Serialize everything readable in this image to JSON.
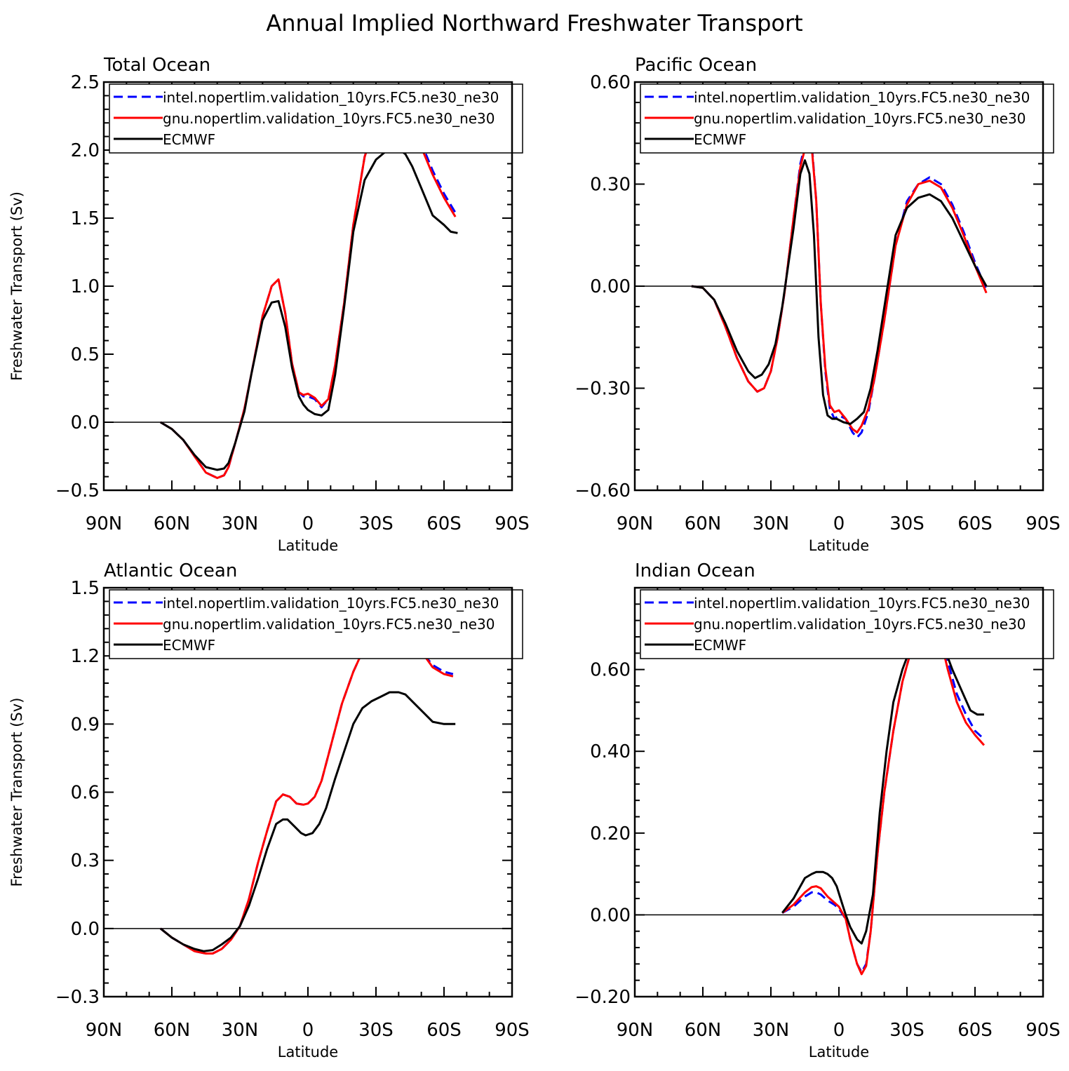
{
  "title": "Annual Implied Northward Freshwater Transport",
  "colors": {
    "intel": "#0000ff",
    "gnu": "#ff0000",
    "ecmwf": "#000000"
  },
  "chart_data": [
    {
      "type": "line",
      "title": "Total Ocean",
      "xlabel": "Latitude",
      "ylabel": "Freshwater Transport (Sv)",
      "x_axis": "latitude, 90N on left to 90S on right",
      "xlim": [
        90,
        -90
      ],
      "xticks": [
        90,
        60,
        30,
        0,
        -30,
        -60,
        -90
      ],
      "xtick_labels": [
        "90N",
        "60N",
        "30N",
        "0",
        "30S",
        "60S",
        "90S"
      ],
      "ylim": [
        -0.5,
        2.5
      ],
      "yticks": [
        -0.5,
        0.0,
        0.5,
        1.0,
        1.5,
        2.0,
        2.5
      ],
      "ytick_labels": [
        "−0.5",
        "0.0",
        "0.5",
        "1.0",
        "1.5",
        "2.0",
        "2.5"
      ],
      "legend_position": "top",
      "series": [
        {
          "name": "intel.nopertlim.validation_10yrs.FC5.ne30_ne30",
          "style": "dashed",
          "color": "#0000ff",
          "x": [
            65,
            60,
            55,
            50,
            45,
            40,
            37,
            35,
            32,
            28,
            25,
            20,
            16,
            13,
            10,
            7,
            4,
            2,
            0,
            -3,
            -6,
            -9,
            -12,
            -16,
            -20,
            -25,
            -30,
            -35,
            -40,
            -43,
            -46,
            -50,
            -55,
            -60,
            -65
          ],
          "y": [
            0.0,
            -0.05,
            -0.13,
            -0.25,
            -0.37,
            -0.41,
            -0.39,
            -0.33,
            -0.15,
            0.1,
            0.35,
            0.78,
            1.0,
            1.05,
            0.8,
            0.43,
            0.22,
            0.19,
            0.19,
            0.17,
            0.11,
            0.17,
            0.42,
            0.88,
            1.45,
            1.95,
            2.22,
            2.35,
            2.38,
            2.35,
            2.25,
            2.05,
            1.85,
            1.68,
            1.54
          ]
        },
        {
          "name": "gnu.nopertlim.validation_10yrs.FC5.ne30_ne30",
          "style": "solid",
          "color": "#ff0000",
          "x": [
            65,
            60,
            55,
            50,
            45,
            40,
            37,
            35,
            32,
            28,
            25,
            20,
            16,
            13,
            10,
            7,
            4,
            2,
            0,
            -3,
            -6,
            -9,
            -12,
            -16,
            -20,
            -25,
            -30,
            -35,
            -40,
            -43,
            -46,
            -50,
            -55,
            -60,
            -65
          ],
          "y": [
            0.0,
            -0.05,
            -0.13,
            -0.25,
            -0.37,
            -0.41,
            -0.39,
            -0.33,
            -0.15,
            0.1,
            0.35,
            0.78,
            1.0,
            1.05,
            0.8,
            0.43,
            0.22,
            0.2,
            0.21,
            0.18,
            0.12,
            0.17,
            0.42,
            0.88,
            1.45,
            1.95,
            2.2,
            2.33,
            2.36,
            2.33,
            2.22,
            2.02,
            1.82,
            1.65,
            1.51
          ]
        },
        {
          "name": "ECMWF",
          "style": "solid",
          "color": "#000000",
          "x": [
            65,
            60,
            55,
            50,
            45,
            40,
            37,
            35,
            32,
            28,
            25,
            20,
            16,
            13,
            10,
            7,
            4,
            2,
            0,
            -3,
            -6,
            -9,
            -12,
            -16,
            -20,
            -25,
            -30,
            -35,
            -40,
            -43,
            -46,
            -50,
            -55,
            -60,
            -63,
            -66
          ],
          "y": [
            0.0,
            -0.05,
            -0.13,
            -0.24,
            -0.33,
            -0.35,
            -0.34,
            -0.3,
            -0.15,
            0.08,
            0.35,
            0.75,
            0.88,
            0.89,
            0.7,
            0.4,
            0.19,
            0.13,
            0.09,
            0.06,
            0.05,
            0.09,
            0.35,
            0.85,
            1.4,
            1.78,
            1.93,
            2.0,
            2.01,
            1.97,
            1.88,
            1.72,
            1.52,
            1.45,
            1.4,
            1.39
          ]
        }
      ]
    },
    {
      "type": "line",
      "title": "Pacific Ocean",
      "xlabel": "Latitude",
      "ylabel": "",
      "xlim": [
        90,
        -90
      ],
      "xticks": [
        90,
        60,
        30,
        0,
        -30,
        -60,
        -90
      ],
      "xtick_labels": [
        "90N",
        "60N",
        "30N",
        "0",
        "30S",
        "60S",
        "90S"
      ],
      "ylim": [
        -0.6,
        0.6
      ],
      "yticks": [
        -0.6,
        -0.3,
        0.0,
        0.3,
        0.6
      ],
      "ytick_labels": [
        "−0.60",
        "−0.30",
        "0.00",
        "0.30",
        "0.60"
      ],
      "legend_position": "top",
      "series": [
        {
          "name": "intel.nopertlim.validation_10yrs.FC5.ne30_ne30",
          "style": "dashed",
          "color": "#0000ff",
          "x": [
            65,
            60,
            55,
            50,
            45,
            40,
            36,
            33,
            30,
            27,
            24,
            20,
            17,
            14,
            12,
            10,
            8,
            6,
            4,
            2,
            0,
            -3,
            -6,
            -8,
            -10,
            -13,
            -16,
            -20,
            -25,
            -30,
            -35,
            -40,
            -45,
            -50,
            -55,
            -60,
            -65
          ],
          "y": [
            0.0,
            -0.005,
            -0.04,
            -0.12,
            -0.21,
            -0.28,
            -0.31,
            -0.3,
            -0.25,
            -0.15,
            -0.02,
            0.2,
            0.36,
            0.44,
            0.42,
            0.25,
            -0.05,
            -0.25,
            -0.36,
            -0.39,
            -0.38,
            -0.39,
            -0.43,
            -0.445,
            -0.43,
            -0.37,
            -0.26,
            -0.1,
            0.12,
            0.25,
            0.3,
            0.32,
            0.3,
            0.24,
            0.16,
            0.07,
            -0.01
          ]
        },
        {
          "name": "gnu.nopertlim.validation_10yrs.FC5.ne30_ne30",
          "style": "solid",
          "color": "#ff0000",
          "x": [
            65,
            60,
            55,
            50,
            45,
            40,
            36,
            33,
            30,
            27,
            24,
            20,
            17,
            14,
            12,
            10,
            8,
            6,
            4,
            2,
            0,
            -3,
            -6,
            -8,
            -10,
            -13,
            -16,
            -20,
            -25,
            -30,
            -35,
            -40,
            -45,
            -50,
            -55,
            -60,
            -65
          ],
          "y": [
            0.0,
            -0.005,
            -0.04,
            -0.12,
            -0.21,
            -0.28,
            -0.31,
            -0.3,
            -0.25,
            -0.15,
            -0.02,
            0.2,
            0.35,
            0.43,
            0.41,
            0.25,
            -0.05,
            -0.24,
            -0.35,
            -0.37,
            -0.365,
            -0.39,
            -0.42,
            -0.43,
            -0.41,
            -0.36,
            -0.26,
            -0.1,
            0.12,
            0.24,
            0.3,
            0.31,
            0.29,
            0.23,
            0.15,
            0.06,
            -0.02
          ]
        },
        {
          "name": "ECMWF",
          "style": "solid",
          "color": "#000000",
          "x": [
            65,
            60,
            55,
            50,
            45,
            40,
            37,
            34,
            31,
            28,
            25,
            20,
            17,
            15,
            13,
            11,
            9,
            7,
            5,
            3,
            1,
            -2,
            -5,
            -8,
            -11,
            -14,
            -17,
            -21,
            -25,
            -30,
            -35,
            -40,
            -45,
            -50,
            -55,
            -60,
            -65
          ],
          "y": [
            0.0,
            -0.005,
            -0.04,
            -0.11,
            -0.19,
            -0.25,
            -0.27,
            -0.26,
            -0.23,
            -0.17,
            -0.06,
            0.17,
            0.33,
            0.37,
            0.33,
            0.15,
            -0.15,
            -0.32,
            -0.38,
            -0.39,
            -0.39,
            -0.4,
            -0.405,
            -0.39,
            -0.37,
            -0.3,
            -0.19,
            -0.02,
            0.15,
            0.23,
            0.26,
            0.27,
            0.25,
            0.2,
            0.13,
            0.06,
            0.0
          ]
        }
      ]
    },
    {
      "type": "line",
      "title": "Atlantic Ocean",
      "xlabel": "Latitude",
      "ylabel": "Freshwater Transport (Sv)",
      "xlim": [
        90,
        -90
      ],
      "xticks": [
        90,
        60,
        30,
        0,
        -30,
        -60,
        -90
      ],
      "xtick_labels": [
        "90N",
        "60N",
        "30N",
        "0",
        "30S",
        "60S",
        "90S"
      ],
      "ylim": [
        -0.3,
        1.5
      ],
      "yticks": [
        -0.3,
        0.0,
        0.3,
        0.6,
        0.9,
        1.2,
        1.5
      ],
      "ytick_labels": [
        "−0.3",
        "0.0",
        "0.3",
        "0.6",
        "0.9",
        "1.2",
        "1.5"
      ],
      "legend_position": "top",
      "series": [
        {
          "name": "intel.nopertlim.validation_10yrs.FC5.ne30_ne30",
          "style": "dashed",
          "color": "#0000ff",
          "x": [
            65,
            60,
            55,
            50,
            45,
            42,
            38,
            34,
            30,
            26,
            22,
            18,
            14,
            11,
            8,
            5,
            2,
            0,
            -3,
            -6,
            -10,
            -15,
            -20,
            -25,
            -30,
            -35,
            -40,
            -43,
            -46,
            -50,
            -55,
            -60,
            -64
          ],
          "y": [
            0.0,
            -0.04,
            -0.07,
            -0.1,
            -0.11,
            -0.11,
            -0.09,
            -0.05,
            0.01,
            0.13,
            0.29,
            0.43,
            0.56,
            0.59,
            0.58,
            0.55,
            0.545,
            0.55,
            0.58,
            0.65,
            0.8,
            0.99,
            1.13,
            1.24,
            1.3,
            1.34,
            1.34,
            1.32,
            1.28,
            1.22,
            1.16,
            1.13,
            1.12
          ]
        },
        {
          "name": "gnu.nopertlim.validation_10yrs.FC5.ne30_ne30",
          "style": "solid",
          "color": "#ff0000",
          "x": [
            65,
            60,
            55,
            50,
            45,
            42,
            38,
            34,
            30,
            26,
            22,
            18,
            14,
            11,
            8,
            5,
            2,
            0,
            -3,
            -6,
            -10,
            -15,
            -20,
            -25,
            -30,
            -35,
            -40,
            -43,
            -46,
            -50,
            -55,
            -60,
            -64
          ],
          "y": [
            0.0,
            -0.04,
            -0.07,
            -0.1,
            -0.11,
            -0.11,
            -0.09,
            -0.05,
            0.01,
            0.13,
            0.29,
            0.43,
            0.56,
            0.59,
            0.58,
            0.55,
            0.545,
            0.55,
            0.58,
            0.65,
            0.8,
            0.99,
            1.13,
            1.24,
            1.3,
            1.34,
            1.34,
            1.32,
            1.28,
            1.22,
            1.15,
            1.12,
            1.11
          ]
        },
        {
          "name": "ECMWF",
          "style": "solid",
          "color": "#000000",
          "x": [
            65,
            60,
            55,
            50,
            46,
            42,
            38,
            34,
            30,
            26,
            22,
            18,
            14,
            11,
            9,
            6,
            3,
            1,
            -2,
            -5,
            -8,
            -12,
            -16,
            -20,
            -24,
            -28,
            -32,
            -36,
            -40,
            -43,
            -46,
            -50,
            -55,
            -60,
            -65
          ],
          "y": [
            0.0,
            -0.04,
            -0.07,
            -0.09,
            -0.1,
            -0.095,
            -0.07,
            -0.04,
            0.01,
            0.1,
            0.22,
            0.35,
            0.46,
            0.48,
            0.48,
            0.45,
            0.42,
            0.41,
            0.42,
            0.46,
            0.53,
            0.66,
            0.78,
            0.9,
            0.97,
            1.0,
            1.02,
            1.04,
            1.04,
            1.03,
            1.0,
            0.96,
            0.91,
            0.9,
            0.9
          ]
        }
      ]
    },
    {
      "type": "line",
      "title": "Indian Ocean",
      "xlabel": "Latitude",
      "ylabel": "",
      "xlim": [
        90,
        -90
      ],
      "xticks": [
        90,
        60,
        30,
        0,
        -30,
        -60,
        -90
      ],
      "xtick_labels": [
        "90N",
        "60N",
        "30N",
        "0",
        "30S",
        "60S",
        "90S"
      ],
      "ylim": [
        -0.2,
        0.8
      ],
      "yticks": [
        -0.2,
        0.0,
        0.2,
        0.4,
        0.6
      ],
      "ytick_labels": [
        "−0.20",
        "0.00",
        "0.20",
        "0.40",
        "0.60"
      ],
      "legend_position": "top",
      "series": [
        {
          "name": "intel.nopertlim.validation_10yrs.FC5.ne30_ne30",
          "style": "dashed",
          "color": "#0000ff",
          "x": [
            25,
            20,
            15,
            12,
            10,
            8,
            5,
            2,
            0,
            -3,
            -5,
            -8,
            -10,
            -12,
            -14,
            -17,
            -20,
            -24,
            -28,
            -32,
            -36,
            -39,
            -42,
            -45,
            -48,
            -52,
            -56,
            -60,
            -64
          ],
          "y": [
            0.005,
            0.02,
            0.045,
            0.055,
            0.055,
            0.05,
            0.035,
            0.025,
            0.015,
            -0.01,
            -0.06,
            -0.12,
            -0.14,
            -0.12,
            -0.04,
            0.15,
            0.3,
            0.45,
            0.57,
            0.65,
            0.7,
            0.715,
            0.71,
            0.68,
            0.62,
            0.54,
            0.49,
            0.45,
            0.43
          ]
        },
        {
          "name": "gnu.nopertlim.validation_10yrs.FC5.ne30_ne30",
          "style": "solid",
          "color": "#ff0000",
          "x": [
            25,
            20,
            15,
            12,
            10,
            8,
            5,
            2,
            0,
            -3,
            -5,
            -8,
            -10,
            -12,
            -14,
            -17,
            -20,
            -24,
            -28,
            -32,
            -36,
            -39,
            -42,
            -45,
            -48,
            -52,
            -56,
            -60,
            -64
          ],
          "y": [
            0.005,
            0.025,
            0.055,
            0.068,
            0.07,
            0.065,
            0.045,
            0.03,
            0.02,
            -0.01,
            -0.06,
            -0.12,
            -0.145,
            -0.125,
            -0.04,
            0.15,
            0.3,
            0.45,
            0.57,
            0.65,
            0.695,
            0.705,
            0.7,
            0.67,
            0.6,
            0.52,
            0.47,
            0.44,
            0.415
          ]
        },
        {
          "name": "ECMWF",
          "style": "solid",
          "color": "#000000",
          "x": [
            25,
            20,
            15,
            12,
            10,
            7,
            5,
            3,
            1,
            -1,
            -3,
            -5,
            -8,
            -10,
            -12,
            -15,
            -18,
            -21,
            -24,
            -28,
            -32,
            -36,
            -40,
            -43,
            -46,
            -50,
            -54,
            -58,
            -61,
            -64
          ],
          "y": [
            0.005,
            0.04,
            0.09,
            0.1,
            0.105,
            0.105,
            0.1,
            0.09,
            0.07,
            0.035,
            0.0,
            -0.03,
            -0.06,
            -0.07,
            -0.04,
            0.05,
            0.25,
            0.4,
            0.52,
            0.6,
            0.66,
            0.7,
            0.71,
            0.7,
            0.66,
            0.6,
            0.55,
            0.5,
            0.49,
            0.49
          ]
        }
      ]
    }
  ]
}
